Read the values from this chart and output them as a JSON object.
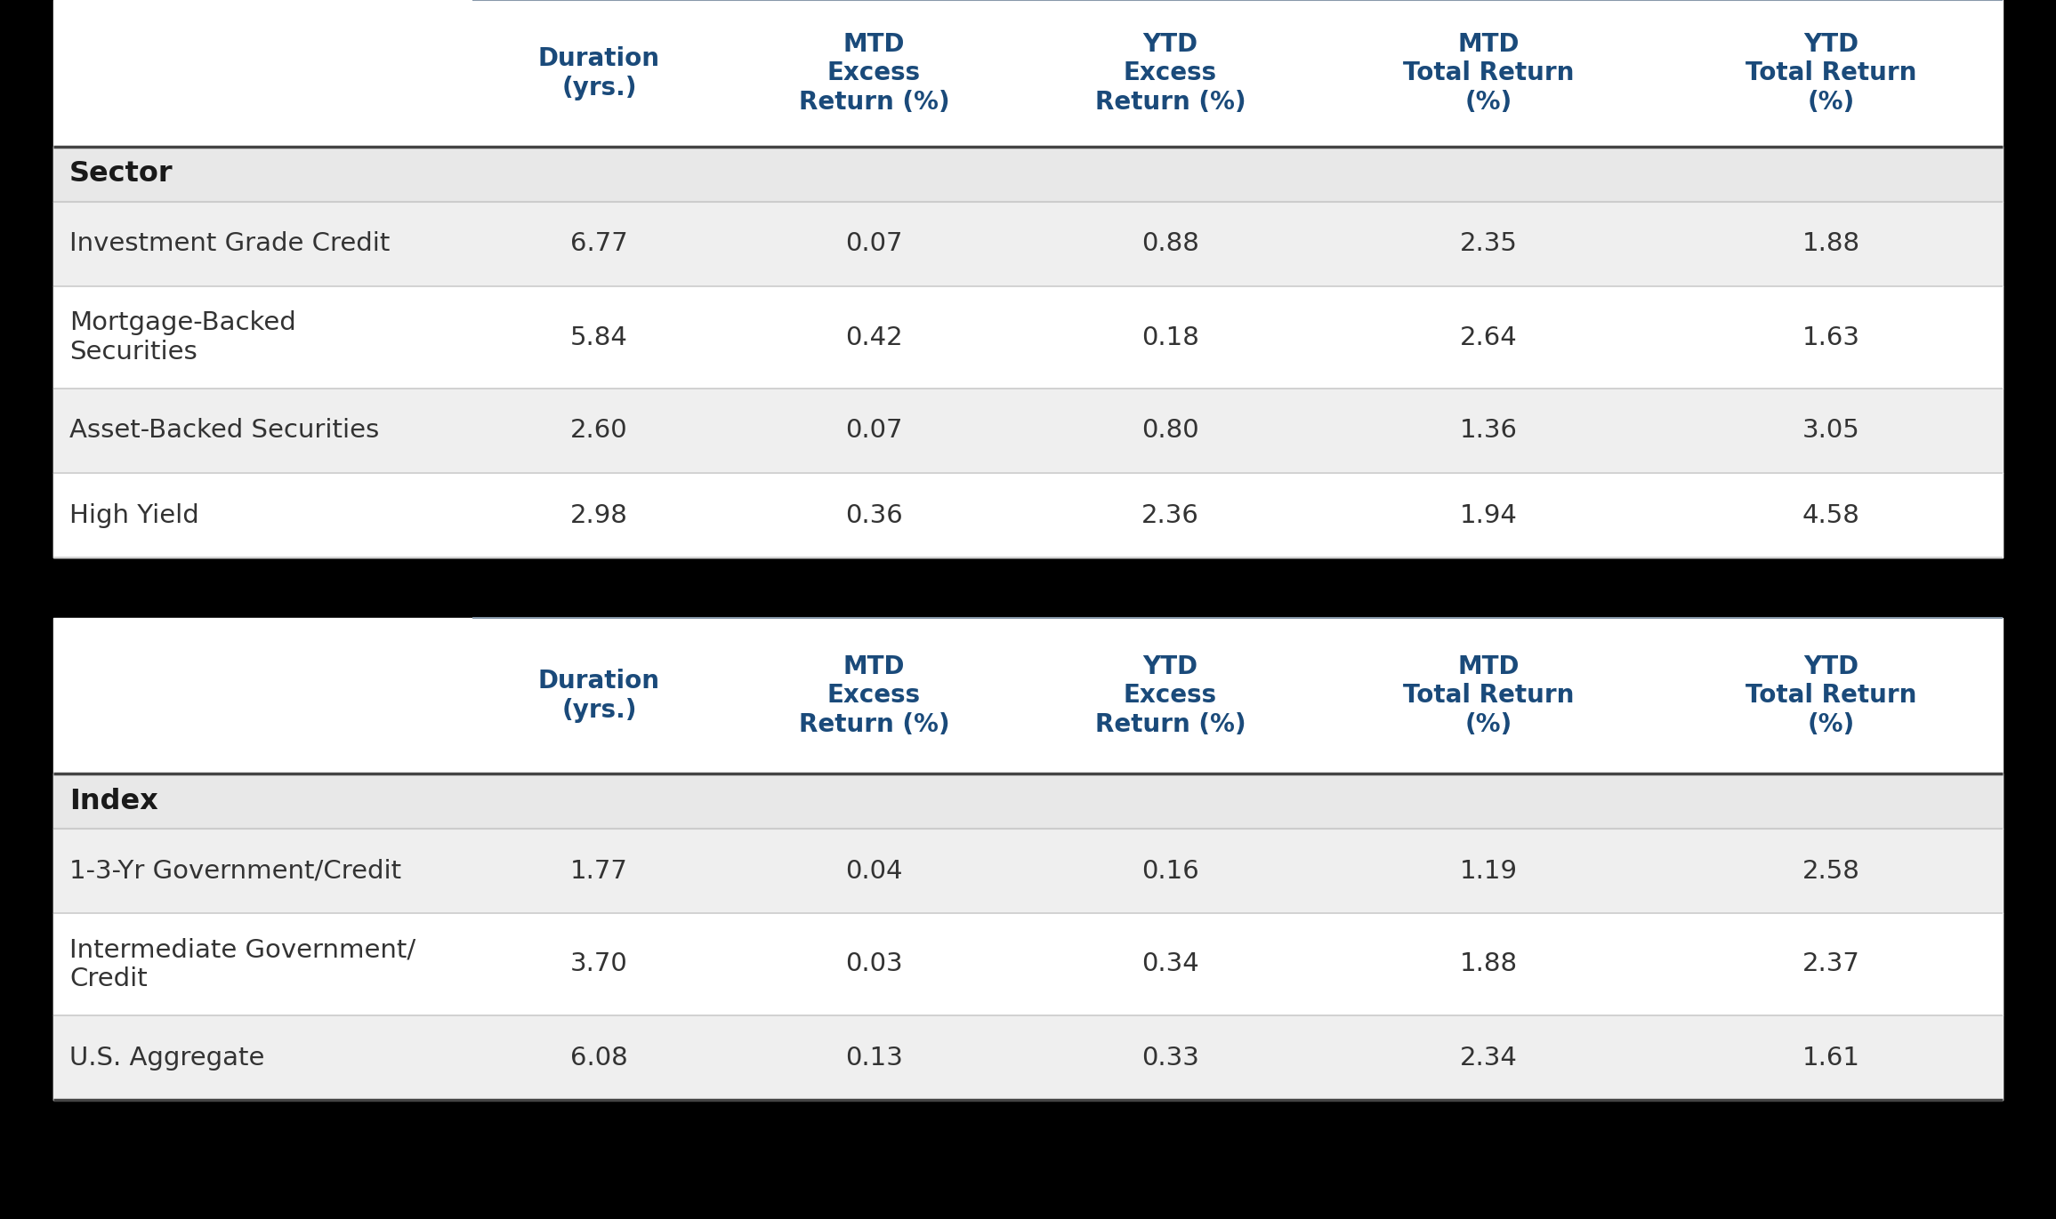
{
  "background_color": "#000000",
  "table_bg": "#ffffff",
  "header_text_color": "#1a4a7a",
  "section_header_bg": "#e8e8e8",
  "row_colors": [
    "#efefef",
    "#ffffff"
  ],
  "col_header_line_color": "#8899aa",
  "thick_line_color": "#444444",
  "thin_line_color": "#cccccc",
  "col_headers": [
    "Duration\n(yrs.)",
    "MTD\nExcess\nReturn (%)",
    "YTD\nExcess\nReturn (%)",
    "MTD\nTotal Return\n(%)",
    "YTD\nTotal Return\n(%)"
  ],
  "sector_section_label": "Sector",
  "sector_rows": [
    {
      "label": "Investment Grade Credit",
      "duration": "6.77",
      "mtd_excess": "0.07",
      "ytd_excess": "0.88",
      "mtd_total": "2.35",
      "ytd_total": "1.88"
    },
    {
      "label": "Mortgage-Backed\nSecurities",
      "duration": "5.84",
      "mtd_excess": "0.42",
      "ytd_excess": "0.18",
      "mtd_total": "2.64",
      "ytd_total": "1.63"
    },
    {
      "label": "Asset-Backed Securities",
      "duration": "2.60",
      "mtd_excess": "0.07",
      "ytd_excess": "0.80",
      "mtd_total": "1.36",
      "ytd_total": "3.05"
    },
    {
      "label": "High Yield",
      "duration": "2.98",
      "mtd_excess": "0.36",
      "ytd_excess": "2.36",
      "mtd_total": "1.94",
      "ytd_total": "4.58"
    }
  ],
  "index_section_label": "Index",
  "index_rows": [
    {
      "label": "1-3-Yr Government/Credit",
      "duration": "1.77",
      "mtd_excess": "0.04",
      "ytd_excess": "0.16",
      "mtd_total": "1.19",
      "ytd_total": "2.58"
    },
    {
      "label": "Intermediate Government/\nCredit",
      "duration": "3.70",
      "mtd_excess": "0.03",
      "ytd_excess": "0.34",
      "mtd_total": "1.88",
      "ytd_total": "2.37"
    },
    {
      "label": "U.S. Aggregate",
      "duration": "6.08",
      "mtd_excess": "0.13",
      "ytd_excess": "0.33",
      "mtd_total": "2.34",
      "ytd_total": "1.61"
    }
  ]
}
